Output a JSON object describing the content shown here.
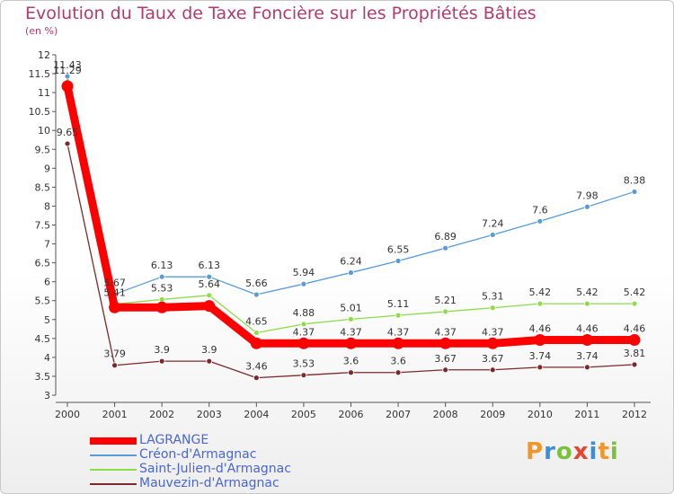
{
  "header": {
    "title": "Evolution du Taux de Taxe Foncière sur les Propriétés Bâties",
    "unit": "(en %)"
  },
  "brand": {
    "text": "Proxiti"
  },
  "chart_data": {
    "type": "line",
    "title": "Evolution du Taux de Taxe Foncière sur les Propriétés Bâties",
    "ylabel": "(en %)",
    "xlabel": "",
    "ylim": [
      3,
      12
    ],
    "ytick_step": 0.5,
    "grid": false,
    "legend_position": "bottom-left",
    "x": [
      "2000",
      "2001",
      "2002",
      "2003",
      "2004",
      "2005",
      "2006",
      "2007",
      "2008",
      "2009",
      "2010",
      "2011",
      "2012"
    ],
    "series": [
      {
        "name": "LAGRANGE",
        "color": "#ff0000",
        "values": [
          11.17,
          5.32,
          5.32,
          5.36,
          4.37,
          4.37,
          4.37,
          4.37,
          4.37,
          4.37,
          4.46,
          4.46,
          4.46
        ],
        "labels": [
          "",
          "",
          "",
          "",
          "",
          "4.37",
          "4.37",
          "4.37",
          "4.37",
          "4.37",
          "4.46",
          "4.46",
          "4.46"
        ]
      },
      {
        "name": "Créon-d'Armagnac",
        "color": "#5b9bd5",
        "values": [
          11.43,
          5.67,
          6.13,
          6.13,
          5.66,
          5.94,
          6.24,
          6.55,
          6.89,
          7.24,
          7.6,
          7.98,
          8.38
        ],
        "labels": [
          "11.43",
          "5.67",
          "6.13",
          "6.13",
          "5.66",
          "5.94",
          "6.24",
          "6.55",
          "6.89",
          "7.24",
          "7.6",
          "7.98",
          "8.38"
        ]
      },
      {
        "name": "Saint-Julien-d'Armagnac",
        "color": "#8fdc4a",
        "values": [
          11.29,
          5.41,
          5.53,
          5.64,
          4.65,
          4.88,
          5.01,
          5.11,
          5.21,
          5.31,
          5.42,
          5.42,
          5.42
        ],
        "labels": [
          "11.29",
          "5.41",
          "5.53",
          "5.64",
          "4.65",
          "4.88",
          "5.01",
          "5.11",
          "5.21",
          "5.31",
          "5.42",
          "5.42",
          "5.42"
        ]
      },
      {
        "name": "Mauvezin-d'Armagnac",
        "color": "#7a2a2a",
        "values": [
          9.65,
          3.79,
          3.9,
          3.9,
          3.46,
          3.53,
          3.6,
          3.6,
          3.67,
          3.67,
          3.74,
          3.74,
          3.81
        ],
        "labels": [
          "9.65",
          "3.79",
          "3.9",
          "3.9",
          "3.46",
          "3.53",
          "3.6",
          "3.6",
          "3.67",
          "3.67",
          "3.74",
          "3.74",
          "3.81"
        ]
      }
    ]
  },
  "legend": {
    "items": [
      "LAGRANGE",
      "Créon-d'Armagnac",
      "Saint-Julien-d'Armagnac",
      "Mauvezin-d'Armagnac"
    ]
  }
}
